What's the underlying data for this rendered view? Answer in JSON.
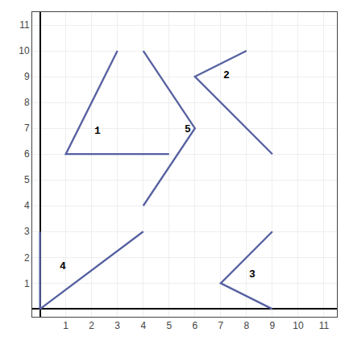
{
  "chart_data": {
    "type": "line",
    "color": "#5560a0",
    "xlim": [
      -0.3,
      11.5
    ],
    "ylim": [
      -0.3,
      11.5
    ],
    "xticks": [
      1,
      2,
      3,
      4,
      5,
      6,
      7,
      8,
      9,
      10,
      11
    ],
    "yticks": [
      1,
      2,
      3,
      4,
      5,
      6,
      7,
      8,
      9,
      10,
      11
    ],
    "grid": true,
    "series": [
      {
        "x": [
          3,
          1,
          5
        ],
        "values": [
          10,
          6,
          6
        ]
      },
      {
        "x": [
          8,
          6,
          9
        ],
        "values": [
          10,
          9,
          6
        ]
      },
      {
        "x": [
          9,
          7,
          9
        ],
        "values": [
          3,
          1,
          0
        ]
      },
      {
        "x": [
          0,
          0,
          4
        ],
        "values": [
          3,
          0,
          3
        ]
      },
      {
        "x": [
          4,
          6,
          4
        ],
        "values": [
          10,
          7,
          4
        ]
      }
    ],
    "annotations": [
      {
        "text": "1",
        "x": 2.05,
        "y": 6.6
      },
      {
        "text": "2",
        "x": 7.05,
        "y": 8.75
      },
      {
        "text": "3",
        "x": 8.05,
        "y": 1.05
      },
      {
        "text": "4",
        "x": 0.7,
        "y": 1.35
      },
      {
        "text": "5",
        "x": 5.55,
        "y": 6.65
      }
    ]
  }
}
